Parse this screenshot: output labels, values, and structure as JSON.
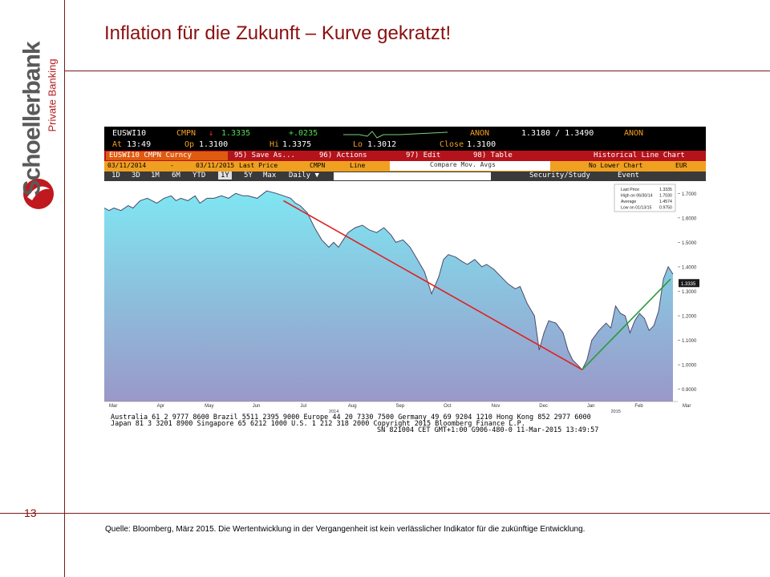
{
  "slide": {
    "title": "Inflation für die Zukunft – Kurve gekratzt!",
    "page_number": "13",
    "source": "Quelle: Bloomberg, März 2015. Die Wertentwicklung in der Vergangenheit ist kein verlässlicher Indikator für die zukünftige Entwicklung.",
    "logo_main": "Schoellerbank",
    "logo_sub": "Private Banking"
  },
  "terminal": {
    "ticker": "EUSWI10",
    "cmpn": "CMPN",
    "arrow": "↓",
    "last": "1.3335",
    "change": "+.0235",
    "anon1": "ANON",
    "bidask": "1.3180 / 1.3490",
    "anon2": "ANON",
    "at_label": "At",
    "at_time": "13:49",
    "op_label": "Op",
    "op_val": "1.3100",
    "hi_label": "Hi",
    "hi_val": "1.3375",
    "lo_label": "Lo",
    "lo_val": "1.3012",
    "close_label": "Close",
    "close_val": "1.3100",
    "security": "EUSWI10 CMPN Curncy",
    "menu": [
      "95) Save As...",
      "96) Actions",
      "97) Edit",
      "98) Table"
    ],
    "chart_kind": "Historical Line Chart",
    "date_from": "03/11/2014",
    "date_to": "03/11/2015",
    "field": "Last Price",
    "source_field": "CMPN",
    "style": "Line",
    "compare": "Compare Mov. Avgs",
    "lower": "No Lower Chart",
    "currency": "EUR",
    "periods": [
      "1D",
      "3D",
      "1M",
      "6M",
      "YTD",
      "1Y",
      "5Y",
      "Max"
    ],
    "freq": "Daily ▼",
    "security_study": "Security/Study",
    "event": "Event",
    "footer1": "Australia 61 2 9777 8600  Brazil 5511 2395 9000  Europe 44 20 7330 7500  Germany 49 69 9204 1210  Hong Kong 852 2977 6000",
    "footer2": "Japan 81 3 3201 8900         Singapore 65 6212 1000          U.S. 1 212 318 2000           Copyright 2015 Bloomberg Finance L.P.",
    "footer3": "SN 821004 CET   GMT+1:00 G906-480-0 11-Mar-2015 13:49:57"
  },
  "chart_data": {
    "type": "area",
    "title": "",
    "xlabel": "",
    "ylabel": "",
    "ylim": [
      0.85,
      1.75
    ],
    "y_ticks": [
      "1.7000",
      "1.6000",
      "1.5000",
      "1.4000",
      "1.3000",
      "1.2000",
      "1.1000",
      "1.0000",
      "0.9000"
    ],
    "x_ticks": [
      "Mar",
      "Apr",
      "May",
      "Jun",
      "Jul",
      "Aug",
      "Sep",
      "Oct",
      "Nov",
      "Dec",
      "Jan",
      "Feb",
      "Mar"
    ],
    "year_labels": [
      "2014",
      "2015"
    ],
    "series": [
      {
        "x": [
          0,
          0.1,
          0.2,
          0.35,
          0.5,
          0.6,
          0.75,
          0.9,
          1.0,
          1.1,
          1.25,
          1.4,
          1.5,
          1.6,
          1.75,
          1.9,
          2.0,
          2.15,
          2.3,
          2.45,
          2.6,
          2.75,
          2.9,
          3.0,
          3.2,
          3.4,
          3.6,
          3.75,
          3.9,
          4.0,
          4.1,
          4.25,
          4.4,
          4.55,
          4.7,
          4.8,
          4.9,
          5.0,
          5.1,
          5.25,
          5.4,
          5.55,
          5.7,
          5.85,
          6.0,
          6.1,
          6.25,
          6.4,
          6.55,
          6.7,
          6.85,
          7.0,
          7.1,
          7.2,
          7.35,
          7.5,
          7.6,
          7.75,
          7.9,
          8.0,
          8.15,
          8.3,
          8.45,
          8.6,
          8.7,
          8.85,
          9.0,
          9.1,
          9.2,
          9.3,
          9.45,
          9.6,
          9.7,
          9.8,
          9.9,
          10.0,
          10.1,
          10.2,
          10.35,
          10.5,
          10.6,
          10.7,
          10.8,
          10.9,
          11.0,
          11.1,
          11.2,
          11.3,
          11.4,
          11.5,
          11.6,
          11.7,
          11.8,
          11.9
        ],
        "values": [
          1.64,
          1.63,
          1.64,
          1.63,
          1.65,
          1.64,
          1.67,
          1.68,
          1.67,
          1.66,
          1.68,
          1.69,
          1.67,
          1.68,
          1.67,
          1.69,
          1.66,
          1.68,
          1.68,
          1.69,
          1.68,
          1.7,
          1.69,
          1.69,
          1.68,
          1.71,
          1.7,
          1.69,
          1.68,
          1.66,
          1.65,
          1.62,
          1.56,
          1.51,
          1.48,
          1.5,
          1.48,
          1.51,
          1.54,
          1.56,
          1.57,
          1.55,
          1.54,
          1.56,
          1.53,
          1.5,
          1.51,
          1.48,
          1.43,
          1.38,
          1.29,
          1.36,
          1.43,
          1.45,
          1.44,
          1.42,
          1.41,
          1.43,
          1.4,
          1.41,
          1.39,
          1.36,
          1.33,
          1.31,
          1.32,
          1.25,
          1.2,
          1.06,
          1.13,
          1.18,
          1.17,
          1.13,
          1.06,
          1.02,
          1.0,
          0.98,
          1.02,
          1.1,
          1.14,
          1.17,
          1.15,
          1.24,
          1.21,
          1.2,
          1.13,
          1.18,
          1.21,
          1.19,
          1.14,
          1.16,
          1.22,
          1.35,
          1.4,
          1.37
        ]
      }
    ],
    "legend_items": [
      {
        "label": "Last Price",
        "value": "1.3335"
      },
      {
        "label": "High on 06/30/14",
        "value": "1.7030"
      },
      {
        "label": "Average",
        "value": "1.4574"
      },
      {
        "label": "Low on 01/13/15",
        "value": "0.9750"
      }
    ],
    "last_price_tag": "1.3335",
    "trend_lines": [
      {
        "color": "#e02020",
        "from": [
          3.75,
          1.67
        ],
        "to": [
          10.0,
          0.98
        ]
      },
      {
        "color": "#2a9a3a",
        "from": [
          10.0,
          0.98
        ],
        "to": [
          11.85,
          1.35
        ]
      }
    ],
    "colors": {
      "area_top": "#7fe6f2",
      "area_bottom": "#9a98c8",
      "line": "#4a4a6a"
    }
  }
}
